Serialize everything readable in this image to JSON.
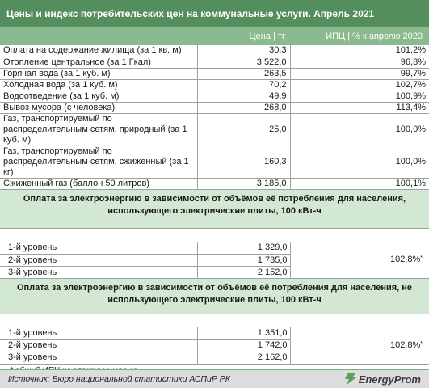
{
  "title": "Цены и индекс потребительских цен на коммунальные услуги. Апрель 2021",
  "columns": {
    "price": "Цена | тг",
    "index": "ИПЦ | % к апрелю 2020"
  },
  "rows": [
    {
      "name": "Оплата на содержание жилища (за 1 кв. м)",
      "price": "30,3",
      "index": "101,2%"
    },
    {
      "name": "Отопление центральное (за 1 Гкал)",
      "price": "3 522,0",
      "index": "96,8%"
    },
    {
      "name": "Горячая вода (за 1 куб. м)",
      "price": "263,5",
      "index": "99,7%"
    },
    {
      "name": "Холодная вода (за 1 куб. м)",
      "price": "70,2",
      "index": "102,7%"
    },
    {
      "name": "Водоотведение (за 1 куб. м)",
      "price": "49,9",
      "index": "100,9%"
    },
    {
      "name": "Вывоз мусора (с человека)",
      "price": "268,0",
      "index": "113,4%"
    },
    {
      "name": "Газ, транспортируемый по распределительным сетям, природный (за 1 куб. м)",
      "price": "25,0",
      "index": "100,0%"
    },
    {
      "name": "Газ, транспортируемый по распределительным сетям, сжиженный (за 1 кг)",
      "price": "160,3",
      "index": "100,0%"
    },
    {
      "name": "Сжиженный газ (баллон 50 литров)",
      "price": "3 185,0",
      "index": "100,1%"
    }
  ],
  "section1": {
    "heading": "Оплата за электроэнергию в зависимости от объёмов её потребления для населения, использующего электрические плиты, 100 кВт-ч",
    "levels": [
      {
        "name": "1-й уровень",
        "price": "1 329,0"
      },
      {
        "name": "2-й уровень",
        "price": "1 735,0"
      },
      {
        "name": "3-й уровень",
        "price": "2 152,0"
      }
    ],
    "index": "102,8%",
    "mark": "*"
  },
  "section2": {
    "heading": "Оплата за электроэнергию в зависимости от объёмов её потребления для населения, не использующего электрические плиты, 100 кВт-ч",
    "levels": [
      {
        "name": "1-й уровень",
        "price": "1 351,0"
      },
      {
        "name": "2-й уровень",
        "price": "1 742,0"
      },
      {
        "name": "3-й уровень",
        "price": "2 162,0"
      }
    ],
    "index": "102,8%",
    "mark": "*"
  },
  "footnote": "* общий ИПЦ на электроэнергию",
  "source": "Источник: Бюро национальной статистики АСПиР РК",
  "logo_text": "EnergyProm",
  "colors": {
    "title_bg": "#548e5c",
    "header_bg": "#8bb990",
    "band_bg": "#d3e8d3",
    "footer_bg": "#dddddd"
  }
}
